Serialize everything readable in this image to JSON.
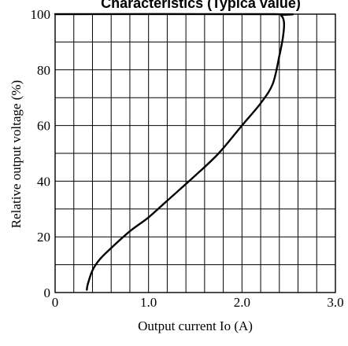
{
  "chart_data": {
    "type": "line",
    "title": "Characteristics (Typica value)",
    "xlabel": "Output current Io (A)",
    "ylabel": "Relative output voltage (%)",
    "xlim": [
      0,
      3.0
    ],
    "ylim": [
      0,
      100
    ],
    "x_ticks": [
      "0",
      "1.0",
      "2.0",
      "3.0"
    ],
    "y_ticks": [
      "0",
      "20",
      "40",
      "60",
      "80",
      "100"
    ],
    "grid": true,
    "series": [
      {
        "x": [
          0,
          2.35,
          2.42,
          2.45,
          2.44,
          2.4,
          2.33,
          2.2,
          2.0,
          1.75,
          1.5,
          1.2,
          1.0,
          0.8,
          0.6,
          0.48,
          0.4,
          0.35,
          0.34
        ],
        "y": [
          100,
          100,
          99.5,
          97,
          92,
          85,
          75,
          68,
          60,
          50,
          42,
          33,
          27,
          22,
          16,
          12,
          8,
          3,
          1
        ]
      }
    ]
  }
}
